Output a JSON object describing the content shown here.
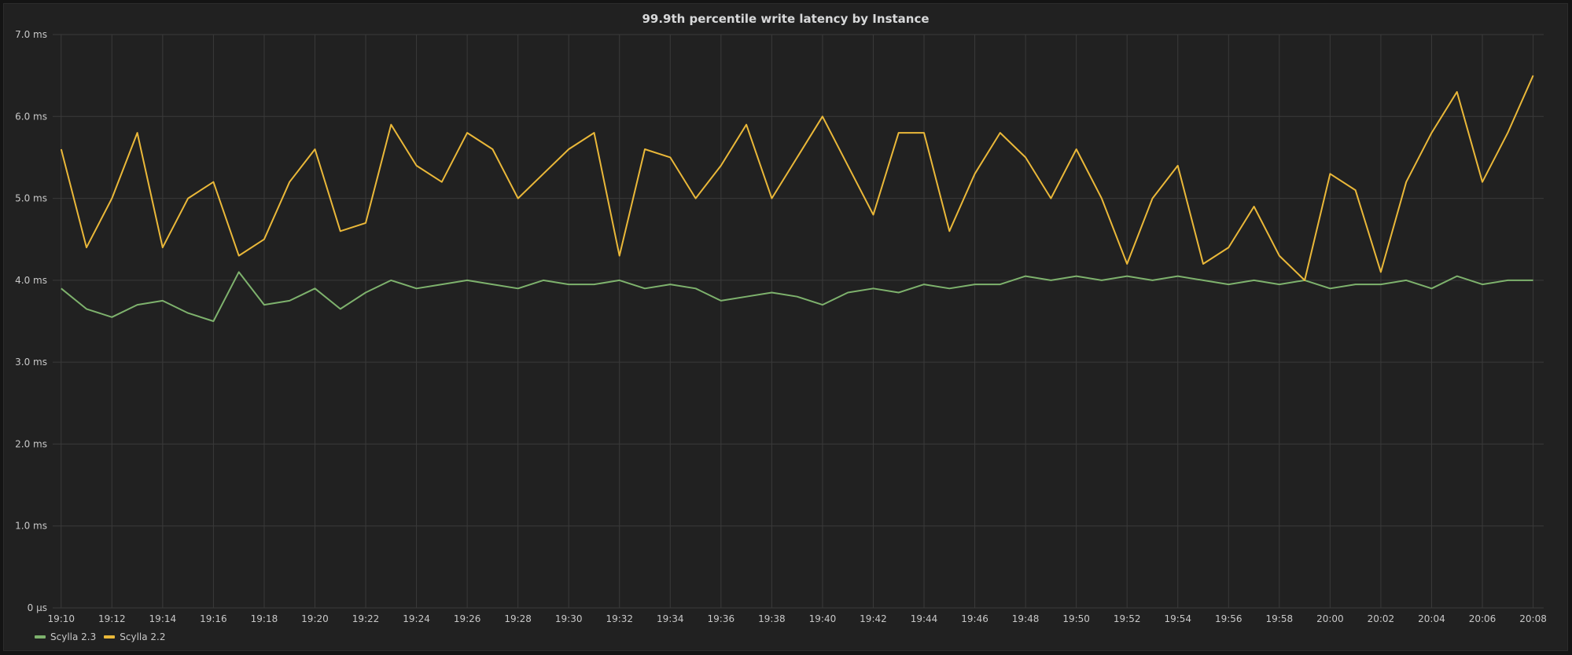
{
  "chart_data": {
    "type": "line",
    "title": "99.9th percentile write latency by Instance",
    "y_ticks": [
      "0 µs",
      "1.0 ms",
      "2.0 ms",
      "3.0 ms",
      "4.0 ms",
      "5.0 ms",
      "6.0 ms",
      "7.0 ms"
    ],
    "y_tick_values": [
      0,
      1,
      2,
      3,
      4,
      5,
      6,
      7
    ],
    "ylim": [
      0,
      7
    ],
    "y_unit": "ms",
    "x_ticks": [
      "19:10",
      "19:12",
      "19:14",
      "19:16",
      "19:18",
      "19:20",
      "19:22",
      "19:24",
      "19:26",
      "19:28",
      "19:30",
      "19:32",
      "19:34",
      "19:36",
      "19:38",
      "19:40",
      "19:42",
      "19:44",
      "19:46",
      "19:48",
      "19:50",
      "19:52",
      "19:54",
      "19:56",
      "19:58",
      "20:00",
      "20:02",
      "20:04",
      "20:06",
      "20:08"
    ],
    "xlim": [
      "19:09:40",
      "20:08:25"
    ],
    "grid": true,
    "legend_position": "bottom-left",
    "series": [
      {
        "name": "Scylla 2.3",
        "color": "#7eb26d",
        "x": [
          "19:10",
          "19:11",
          "19:12",
          "19:13",
          "19:14",
          "19:15",
          "19:16",
          "19:17",
          "19:18",
          "19:19",
          "19:20",
          "19:21",
          "19:22",
          "19:23",
          "19:24",
          "19:25",
          "19:26",
          "19:27",
          "19:28",
          "19:29",
          "19:30",
          "19:31",
          "19:32",
          "19:33",
          "19:34",
          "19:35",
          "19:36",
          "19:37",
          "19:38",
          "19:39",
          "19:40",
          "19:41",
          "19:42",
          "19:43",
          "19:44",
          "19:45",
          "19:46",
          "19:47",
          "19:48",
          "19:49",
          "19:50",
          "19:51",
          "19:52",
          "19:53",
          "19:54",
          "19:55",
          "19:56",
          "19:57",
          "19:58",
          "19:59",
          "20:00",
          "20:01",
          "20:02",
          "20:03",
          "20:04",
          "20:05",
          "20:06",
          "20:07",
          "20:08"
        ],
        "values": [
          3.9,
          3.65,
          3.55,
          3.7,
          3.75,
          3.6,
          3.5,
          4.1,
          3.7,
          3.75,
          3.9,
          3.65,
          3.85,
          4.0,
          3.9,
          3.95,
          4.0,
          3.95,
          3.9,
          4.0,
          3.95,
          3.95,
          4.0,
          3.9,
          3.95,
          3.9,
          3.75,
          3.8,
          3.85,
          3.8,
          3.7,
          3.85,
          3.9,
          3.85,
          3.95,
          3.9,
          3.95,
          3.95,
          4.05,
          4.0,
          4.05,
          4.0,
          4.05,
          4.0,
          4.05,
          4.0,
          3.95,
          4.0,
          3.95,
          4.0,
          3.9,
          3.95,
          3.95,
          4.0,
          3.9,
          4.05,
          3.95,
          4.0,
          4.0
        ]
      },
      {
        "name": "Scylla 2.2",
        "color": "#eab839",
        "x": [
          "19:10",
          "19:11",
          "19:12",
          "19:13",
          "19:14",
          "19:15",
          "19:16",
          "19:17",
          "19:18",
          "19:19",
          "19:20",
          "19:21",
          "19:22",
          "19:23",
          "19:24",
          "19:25",
          "19:26",
          "19:27",
          "19:28",
          "19:29",
          "19:30",
          "19:31",
          "19:32",
          "19:33",
          "19:34",
          "19:35",
          "19:36",
          "19:37",
          "19:38",
          "19:39",
          "19:40",
          "19:41",
          "19:42",
          "19:43",
          "19:44",
          "19:45",
          "19:46",
          "19:47",
          "19:48",
          "19:49",
          "19:50",
          "19:51",
          "19:52",
          "19:53",
          "19:54",
          "19:55",
          "19:56",
          "19:57",
          "19:58",
          "19:59",
          "20:00",
          "20:01",
          "20:02",
          "20:03",
          "20:04",
          "20:05",
          "20:06",
          "20:07",
          "20:08"
        ],
        "values": [
          5.6,
          4.4,
          5.0,
          5.8,
          4.4,
          5.0,
          5.2,
          4.3,
          4.5,
          5.2,
          5.6,
          4.6,
          4.7,
          5.9,
          5.4,
          5.2,
          5.8,
          5.6,
          5.0,
          5.3,
          5.6,
          5.8,
          4.3,
          5.6,
          5.5,
          5.0,
          5.4,
          5.9,
          5.0,
          5.5,
          6.0,
          5.4,
          4.8,
          5.8,
          5.8,
          4.6,
          5.3,
          5.8,
          5.5,
          5.0,
          5.6,
          5.0,
          4.2,
          5.0,
          5.4,
          4.2,
          4.4,
          4.9,
          4.3,
          4.0,
          5.3,
          5.1,
          4.1,
          5.2,
          5.8,
          6.3,
          5.2,
          5.8,
          6.5
        ]
      }
    ]
  }
}
